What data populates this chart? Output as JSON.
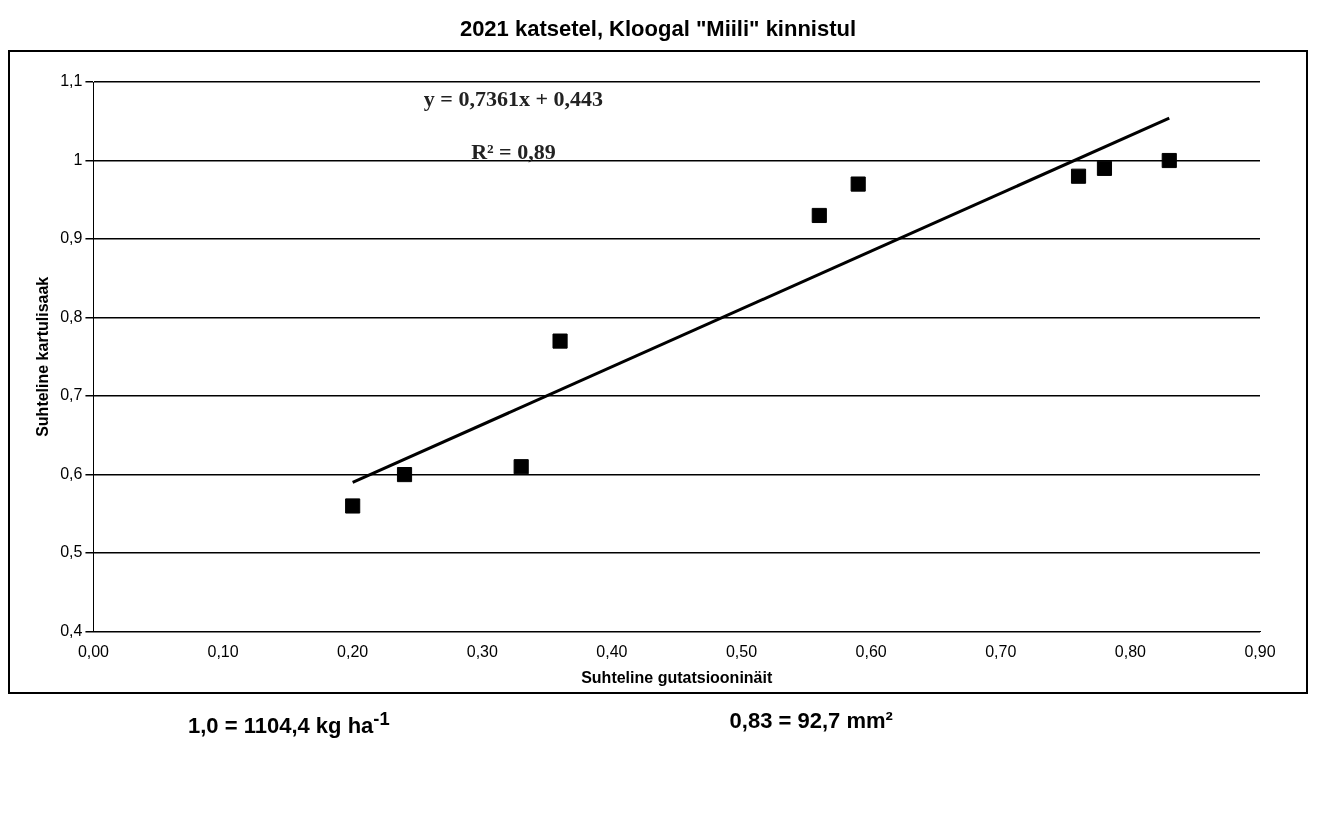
{
  "chart_data": {
    "type": "scatter",
    "title": "2021 katsetel, Kloogal \"Miili\" kinnistul",
    "xlabel": "Suhteline gutatsiooninäit",
    "ylabel": "Suhteline kartulisaak",
    "x": [
      0.2,
      0.24,
      0.33,
      0.36,
      0.56,
      0.59,
      0.76,
      0.78,
      0.83
    ],
    "series": [
      {
        "marker": "square",
        "color": "#000000",
        "values": [
          0.56,
          0.6,
          0.61,
          0.77,
          0.93,
          0.97,
          0.98,
          0.99,
          1.0
        ]
      },
      {
        "type": "line",
        "marker": "none",
        "color": "#000000",
        "x": [
          0.2,
          0.83
        ],
        "values": [
          0.59,
          1.054
        ]
      }
    ],
    "xlim": [
      0,
      0.9
    ],
    "xticks": [
      {
        "value": 0,
        "label": "0,00"
      },
      {
        "value": 0.1,
        "label": "0,10"
      },
      {
        "value": 0.2,
        "label": "0,20"
      },
      {
        "value": 0.3,
        "label": "0,30"
      },
      {
        "value": 0.4,
        "label": "0,40"
      },
      {
        "value": 0.5,
        "label": "0,50"
      },
      {
        "value": 0.6,
        "label": "0,60"
      },
      {
        "value": 0.7,
        "label": "0,70"
      },
      {
        "value": 0.8,
        "label": "0,80"
      },
      {
        "value": 0.9,
        "label": "0,90"
      }
    ],
    "ylim": [
      0.4,
      1.1
    ],
    "yticks": [
      {
        "value": 0.4,
        "label": "0,4"
      },
      {
        "value": 0.5,
        "label": "0,5"
      },
      {
        "value": 0.6,
        "label": "0,6"
      },
      {
        "value": 0.7,
        "label": "0,7"
      },
      {
        "value": 0.8,
        "label": "0,8"
      },
      {
        "value": 0.9,
        "label": "0,9"
      },
      {
        "value": 1,
        "label": "1"
      },
      {
        "value": 1.1,
        "label": "1,1"
      }
    ],
    "grid": "y",
    "legend": false,
    "annotations": [
      "y = 0,7361x + 0,443",
      "R² = 0,89",
      "1,0 = 1104,4 kg ha$^{-1}$",
      "0,83 = 92,7 mm²"
    ]
  }
}
